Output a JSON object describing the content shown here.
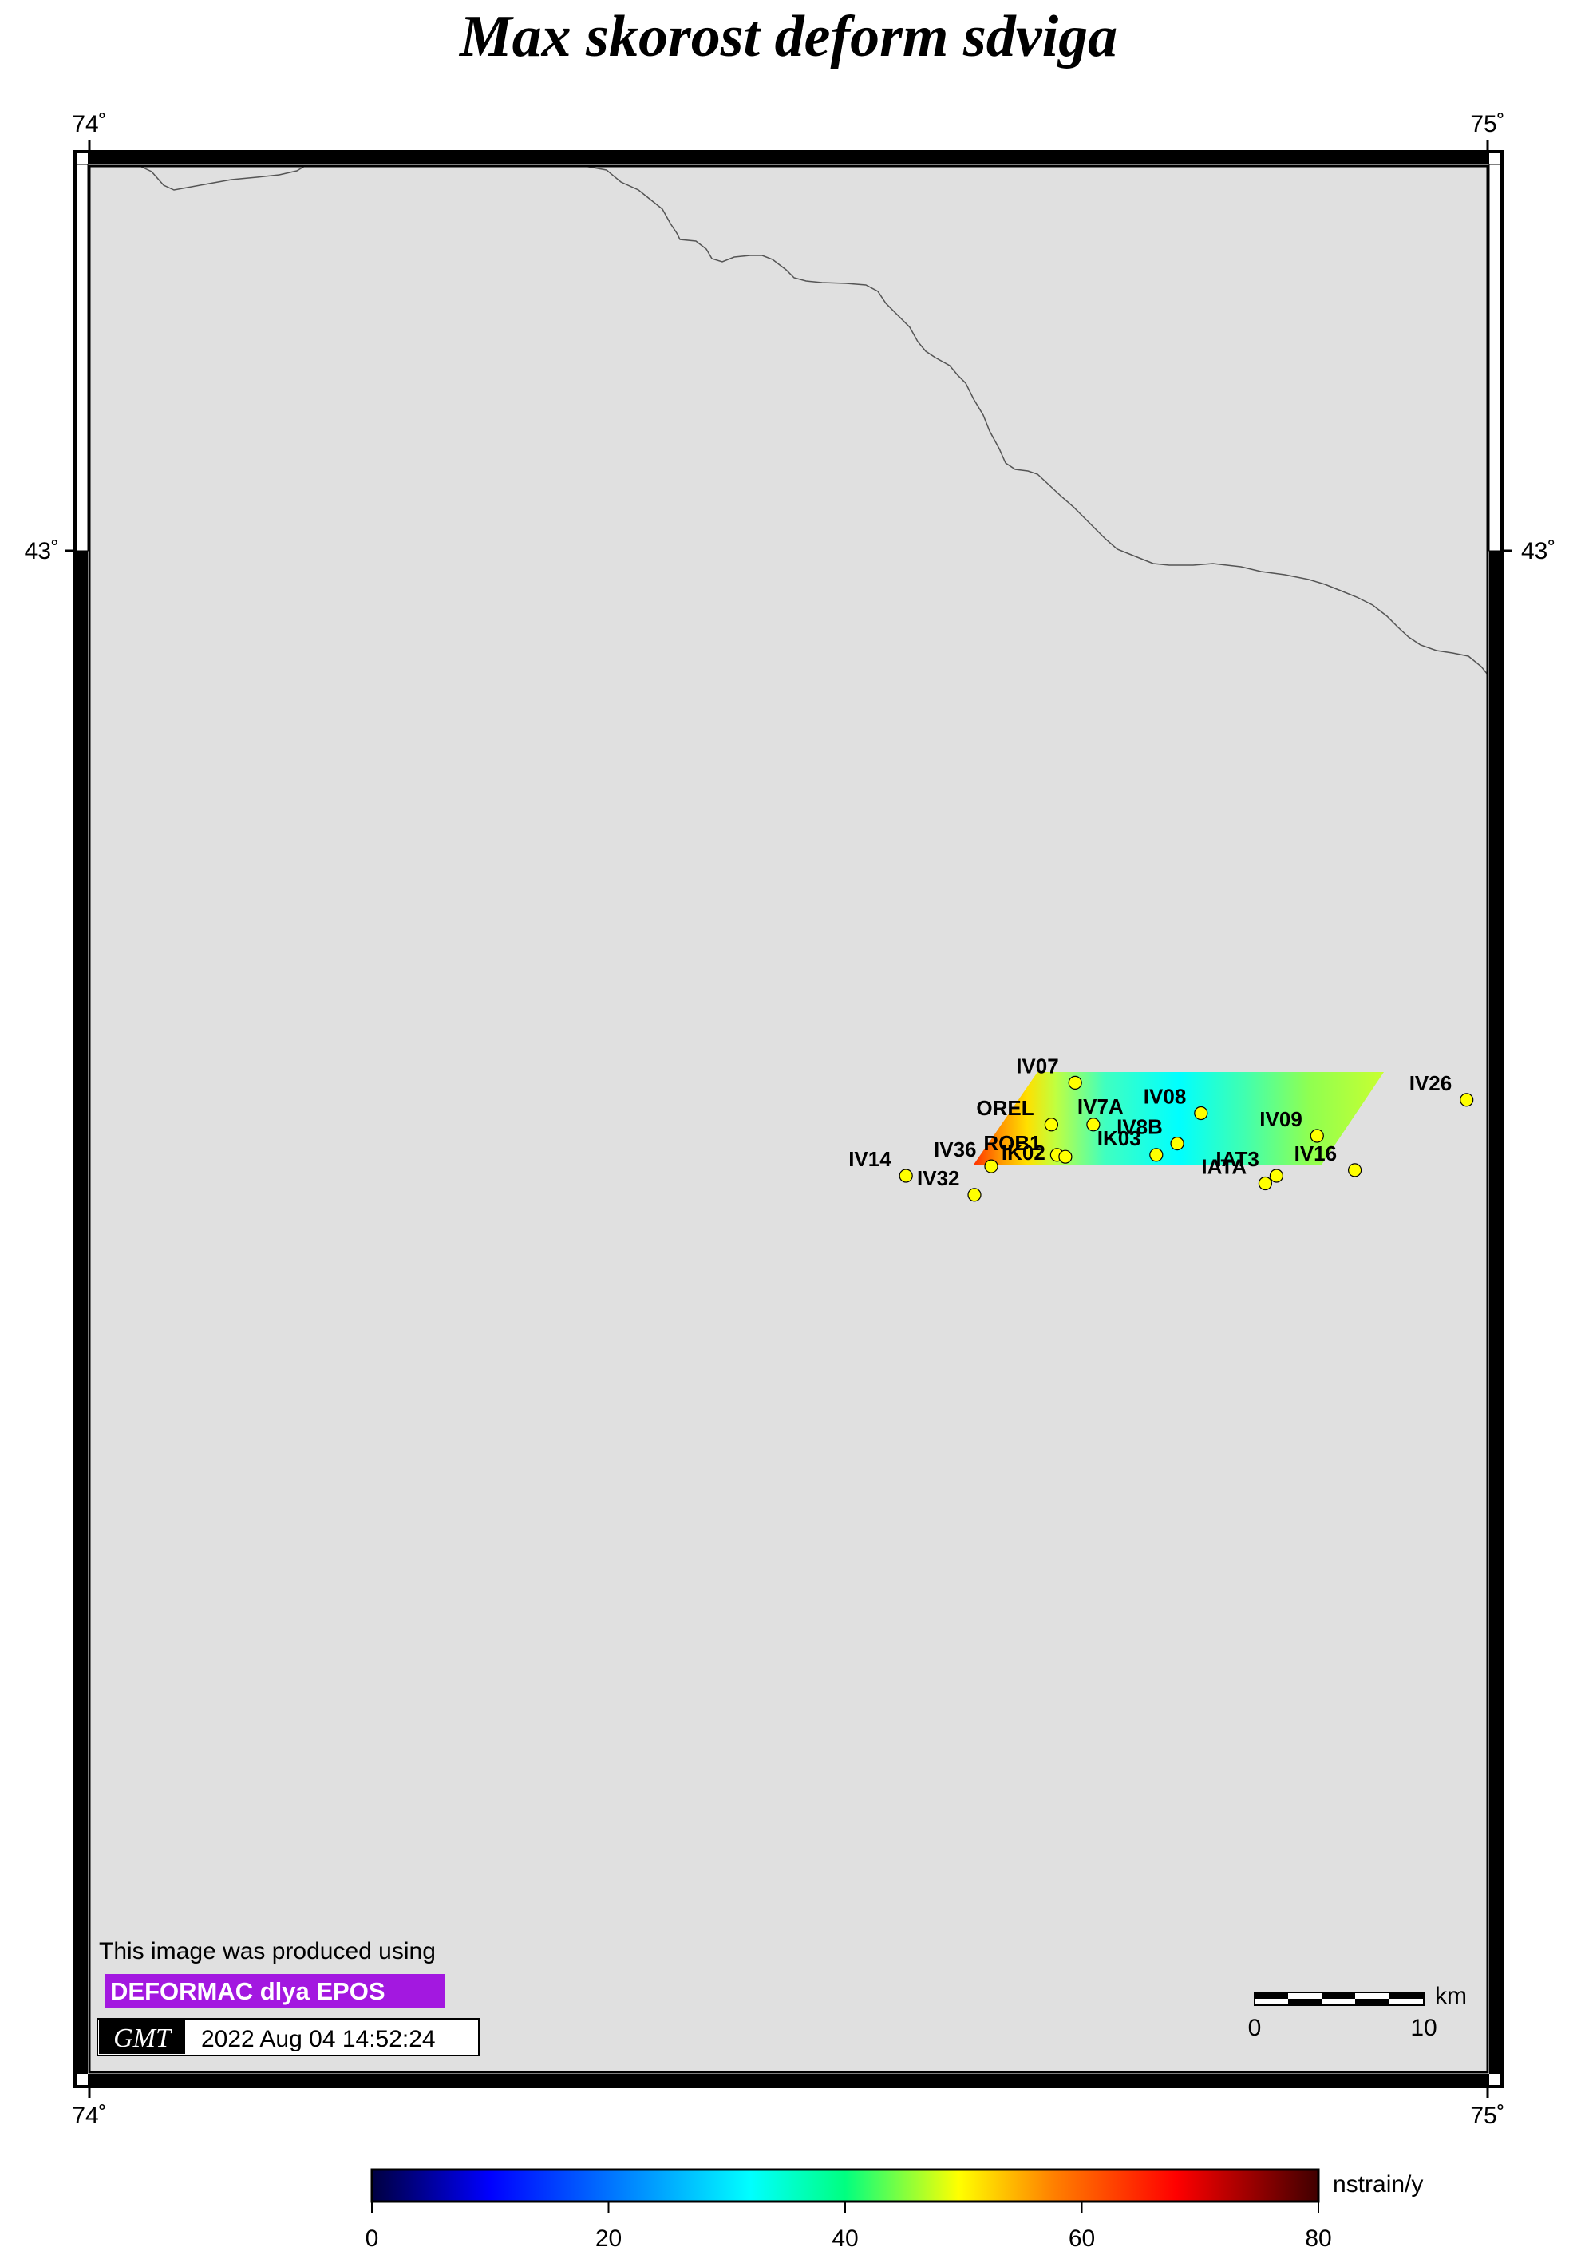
{
  "title": "Max skorost deform sdviga",
  "frame": {
    "lon_labels": [
      "74˚",
      "75˚"
    ],
    "lat_label": "43˚"
  },
  "stations": [
    {
      "name": "IV07",
      "lon": 74.705,
      "lat": 42.72
    },
    {
      "name": "IV08",
      "lon": 74.795,
      "lat": 42.704
    },
    {
      "name": "IV26",
      "lon": 74.985,
      "lat": 42.711
    },
    {
      "name": "OREL",
      "lon": 74.688,
      "lat": 42.698
    },
    {
      "name": "IV7A",
      "lon": 74.718,
      "lat": 42.698
    },
    {
      "name": "IV09",
      "lon": 74.878,
      "lat": 42.692
    },
    {
      "name": "IV8B",
      "lon": 74.778,
      "lat": 42.688
    },
    {
      "name": "ROB1",
      "lon": 74.692,
      "lat": 42.682
    },
    {
      "name": "IK02",
      "lon": 74.698,
      "lat": 42.681
    },
    {
      "name": "IK03",
      "lon": 74.763,
      "lat": 42.682
    },
    {
      "name": "IV36",
      "lon": 74.645,
      "lat": 42.676
    },
    {
      "name": "IV14",
      "lon": 74.584,
      "lat": 42.671
    },
    {
      "name": "IAT3",
      "lon": 74.849,
      "lat": 42.671
    },
    {
      "name": "IV16",
      "lon": 74.905,
      "lat": 42.674
    },
    {
      "name": "IATA",
      "lon": 74.841,
      "lat": 42.667
    },
    {
      "name": "IV32",
      "lon": 74.633,
      "lat": 42.661
    }
  ],
  "attribution": {
    "line1": "This image was produced using",
    "badge": "DEFORMAC dlya EPOS",
    "logo": "GMT",
    "timestamp": "2022 Aug 04 14:52:24",
    "badge_color": "#a318e0"
  },
  "scale_bar": {
    "start": "0",
    "end": "10",
    "unit": "km"
  },
  "colorbar": {
    "unit": "nstrain/y",
    "ticks": [
      "0",
      "20",
      "40",
      "60",
      "80"
    ],
    "min": 0,
    "max": 80,
    "cpt": [
      "#000040",
      "#0000ff",
      "#00ffff",
      "#00ff80",
      "#ffff00",
      "#ff7f00",
      "#ff0000",
      "#400000"
    ]
  },
  "strain_field": {
    "values_left_to_right": [
      75,
      55,
      40,
      25,
      22,
      30,
      38,
      45
    ]
  },
  "colors": {
    "land": "#e0e0e0",
    "station": "#ffff00",
    "coastline": "#555555"
  }
}
